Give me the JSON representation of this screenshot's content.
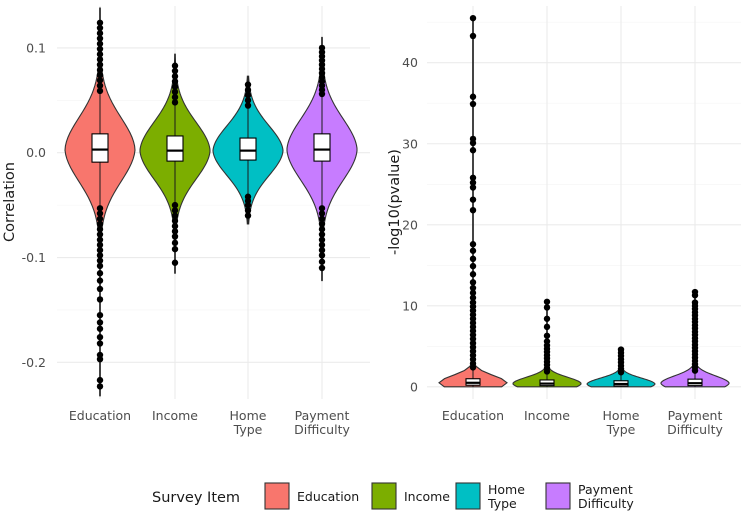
{
  "chart_data": [
    {
      "type": "violin",
      "ylabel": "Correlation",
      "xlabel": "",
      "ylim": [
        -0.235,
        0.14
      ],
      "yticks": [
        0.1,
        0.0,
        -0.1,
        -0.2
      ],
      "ytick_labels": [
        "0.1",
        "0.0",
        "-0.1",
        "-0.2"
      ],
      "categories": [
        {
          "key": "education",
          "label_lines": [
            "Education"
          ]
        },
        {
          "key": "income",
          "label_lines": [
            "Income"
          ]
        },
        {
          "key": "home_type",
          "label_lines": [
            "Home",
            "Type"
          ]
        },
        {
          "key": "payment_difficulty",
          "label_lines": [
            "Payment",
            "Difficulty"
          ]
        }
      ],
      "series": [
        {
          "key": "education",
          "min": -0.232,
          "max": 0.138,
          "q1": -0.009,
          "median": 0.003,
          "q3": 0.018,
          "outliers": [
            0.124,
            0.119,
            0.114,
            0.109,
            0.104,
            0.099,
            0.094,
            0.089,
            0.084,
            0.079,
            0.074,
            0.069,
            0.064,
            0.059,
            -0.053,
            -0.058,
            -0.063,
            -0.068,
            -0.073,
            -0.078,
            -0.083,
            -0.088,
            -0.093,
            -0.098,
            -0.103,
            -0.108,
            -0.115,
            -0.122,
            -0.13,
            -0.14,
            -0.155,
            -0.162,
            -0.168,
            -0.176,
            -0.182,
            -0.193,
            -0.197,
            -0.217,
            -0.223
          ]
        },
        {
          "key": "income",
          "min": -0.115,
          "max": 0.094,
          "q1": -0.008,
          "median": 0.002,
          "q3": 0.016,
          "outliers": [
            0.083,
            0.078,
            0.073,
            0.068,
            0.063,
            0.058,
            0.053,
            0.048,
            -0.05,
            -0.055,
            -0.06,
            -0.065,
            -0.07,
            -0.075,
            -0.08,
            -0.086,
            -0.092,
            -0.105
          ]
        },
        {
          "key": "home_type",
          "min": -0.068,
          "max": 0.073,
          "q1": -0.007,
          "median": 0.002,
          "q3": 0.014,
          "outliers": [
            0.065,
            0.06,
            0.055,
            0.05,
            0.045,
            -0.042,
            -0.046,
            -0.05,
            -0.055,
            -0.06
          ]
        },
        {
          "key": "payment_difficulty",
          "min": -0.122,
          "max": 0.11,
          "q1": -0.008,
          "median": 0.003,
          "q3": 0.018,
          "outliers": [
            0.1,
            0.096,
            0.092,
            0.088,
            0.084,
            0.08,
            0.076,
            0.072,
            0.068,
            0.064,
            0.06,
            0.056,
            -0.053,
            -0.058,
            -0.063,
            -0.068,
            -0.073,
            -0.078,
            -0.083,
            -0.088,
            -0.093,
            -0.098,
            -0.104,
            -0.11
          ]
        }
      ]
    },
    {
      "type": "violin",
      "ylabel": "-log10(pvalue)",
      "xlabel": "",
      "ylim": [
        -1.5,
        47
      ],
      "yticks": [
        0,
        10,
        20,
        30,
        40
      ],
      "ytick_labels": [
        "0",
        "10",
        "20",
        "30",
        "40"
      ],
      "categories": [
        {
          "key": "education",
          "label_lines": [
            "Education"
          ]
        },
        {
          "key": "income",
          "label_lines": [
            "Income"
          ]
        },
        {
          "key": "home_type",
          "label_lines": [
            "Home",
            "Type"
          ]
        },
        {
          "key": "payment_difficulty",
          "label_lines": [
            "Payment",
            "Difficulty"
          ]
        }
      ],
      "series": [
        {
          "key": "education",
          "min": 0,
          "max": 45.5,
          "q1": 0.2,
          "median": 0.5,
          "q3": 1.0,
          "outliers": [
            45.5,
            43.3,
            35.8,
            34.9,
            30.6,
            30.1,
            29.2,
            25.8,
            25.2,
            24.6,
            23.1,
            21.8,
            17.6,
            16.8,
            15.8,
            14.9,
            13.9,
            12.9,
            12.2,
            11.6,
            11.0,
            10.4,
            9.9,
            9.4,
            8.9,
            8.4,
            7.9,
            7.4,
            6.9,
            6.4,
            5.9,
            5.4,
            4.9,
            4.4,
            3.9,
            3.4,
            2.9,
            2.4
          ]
        },
        {
          "key": "income",
          "min": 0,
          "max": 10.5,
          "q1": 0.15,
          "median": 0.4,
          "q3": 0.85,
          "outliers": [
            10.5,
            9.8,
            8.4,
            7.4,
            6.3,
            5.6,
            5.1,
            4.7,
            4.3,
            3.9,
            3.5,
            3.1,
            2.7,
            2.3,
            1.9
          ]
        },
        {
          "key": "home_type",
          "min": 0,
          "max": 4.6,
          "q1": 0.1,
          "median": 0.35,
          "q3": 0.75,
          "outliers": [
            4.6,
            4.2,
            3.8,
            3.4,
            3.0,
            2.6,
            2.2,
            1.8
          ]
        },
        {
          "key": "payment_difficulty",
          "min": 0,
          "max": 11.7,
          "q1": 0.15,
          "median": 0.45,
          "q3": 0.95,
          "outliers": [
            11.7,
            11.3,
            10.4,
            10.0,
            9.6,
            9.2,
            8.8,
            8.4,
            8.0,
            7.6,
            7.2,
            6.8,
            6.4,
            6.0,
            5.6,
            5.2,
            4.8,
            4.4,
            4.0,
            3.6,
            3.2,
            2.8,
            2.4,
            2.0
          ]
        }
      ]
    }
  ],
  "legend": {
    "title": "Survey Item",
    "items": [
      {
        "key": "education",
        "label_lines": [
          "Education"
        ],
        "color": "#F8766D"
      },
      {
        "key": "income",
        "label_lines": [
          "Income"
        ],
        "color": "#7CAE00"
      },
      {
        "key": "home_type",
        "label_lines": [
          "Home",
          "Type"
        ],
        "color": "#00BFC4"
      },
      {
        "key": "payment_difficulty",
        "label_lines": [
          "Payment",
          "Difficulty"
        ],
        "color": "#C77CFF"
      }
    ]
  }
}
